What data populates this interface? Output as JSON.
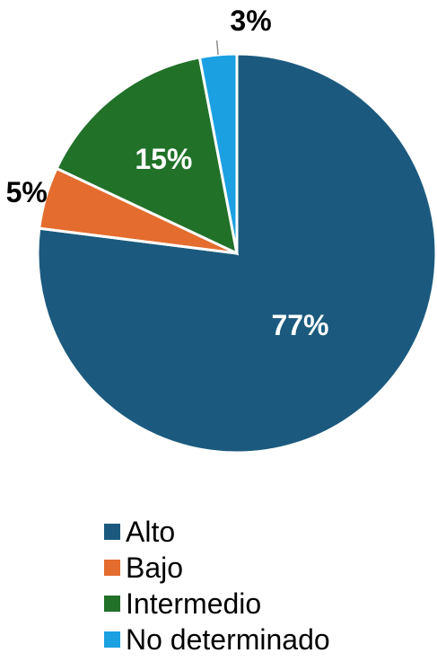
{
  "chart_data": {
    "type": "pie",
    "title": "",
    "start_angle_deg": 0,
    "direction": "clockwise",
    "legend_position": "bottom",
    "slices": [
      {
        "name": "Alto",
        "value": 77,
        "label": "77%",
        "color": "#1b5a7e",
        "label_color": "#ffffff",
        "label_placement": "inside"
      },
      {
        "name": "Bajo",
        "value": 5,
        "label": "5%",
        "color": "#e46c2e",
        "label_color": "#000000",
        "label_placement": "outside"
      },
      {
        "name": "Intermedio",
        "value": 15,
        "label": "15%",
        "color": "#217129",
        "label_color": "#ffffff",
        "label_placement": "inside"
      },
      {
        "name": "No determinado",
        "value": 3,
        "label": "3%",
        "color": "#1ba1e2",
        "label_color": "#000000",
        "label_placement": "outside-leader"
      }
    ]
  },
  "legend": {
    "items": [
      {
        "label": "Alto",
        "color": "#1b5a7e"
      },
      {
        "label": "Bajo",
        "color": "#e46c2e"
      },
      {
        "label": "Intermedio",
        "color": "#217129"
      },
      {
        "label": "No determinado",
        "color": "#1ba1e2"
      }
    ]
  }
}
